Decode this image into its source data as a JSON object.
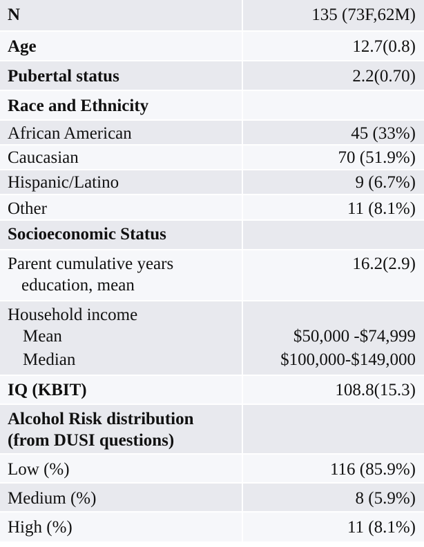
{
  "rows": {
    "n": {
      "label": "N",
      "value": "135 (73F,62M)"
    },
    "age": {
      "label": "Age",
      "value": "12.7(0.8)"
    },
    "pubertal": {
      "label": "Pubertal status",
      "value": "2.2(0.70)"
    },
    "race": {
      "label": "Race and Ethnicity"
    },
    "african_american": {
      "label": "African American",
      "value": "45 (33%)"
    },
    "caucasian": {
      "label": "Caucasian",
      "value": "70 (51.9%)"
    },
    "hispanic": {
      "label": "Hispanic/Latino",
      "value": "9 (6.7%)"
    },
    "other": {
      "label": "Other",
      "value": "11 (8.1%)"
    },
    "ses": {
      "label": "Socioeconomic Status"
    },
    "parent_edu": {
      "label_line1": "Parent cumulative years",
      "label_line2": "education, mean",
      "value": "16.2(2.9)"
    },
    "income": {
      "label": "Household income",
      "mean_label": "Mean",
      "mean_value": "$50,000 -$74,999",
      "median_label": "Median",
      "median_value": "$100,000-$149,000"
    },
    "iq": {
      "label": "IQ (KBIT)",
      "value": "108.8(15.3)"
    },
    "alcohol": {
      "label_line1": "Alcohol Risk distribution",
      "label_line2": "(from DUSI questions)"
    },
    "low": {
      "label": "Low (%)",
      "value": "116 (85.9%)"
    },
    "medium": {
      "label": "Medium (%)",
      "value": "8 (5.9%)"
    },
    "high": {
      "label": "High (%)",
      "value": "11 (8.1%)"
    }
  }
}
